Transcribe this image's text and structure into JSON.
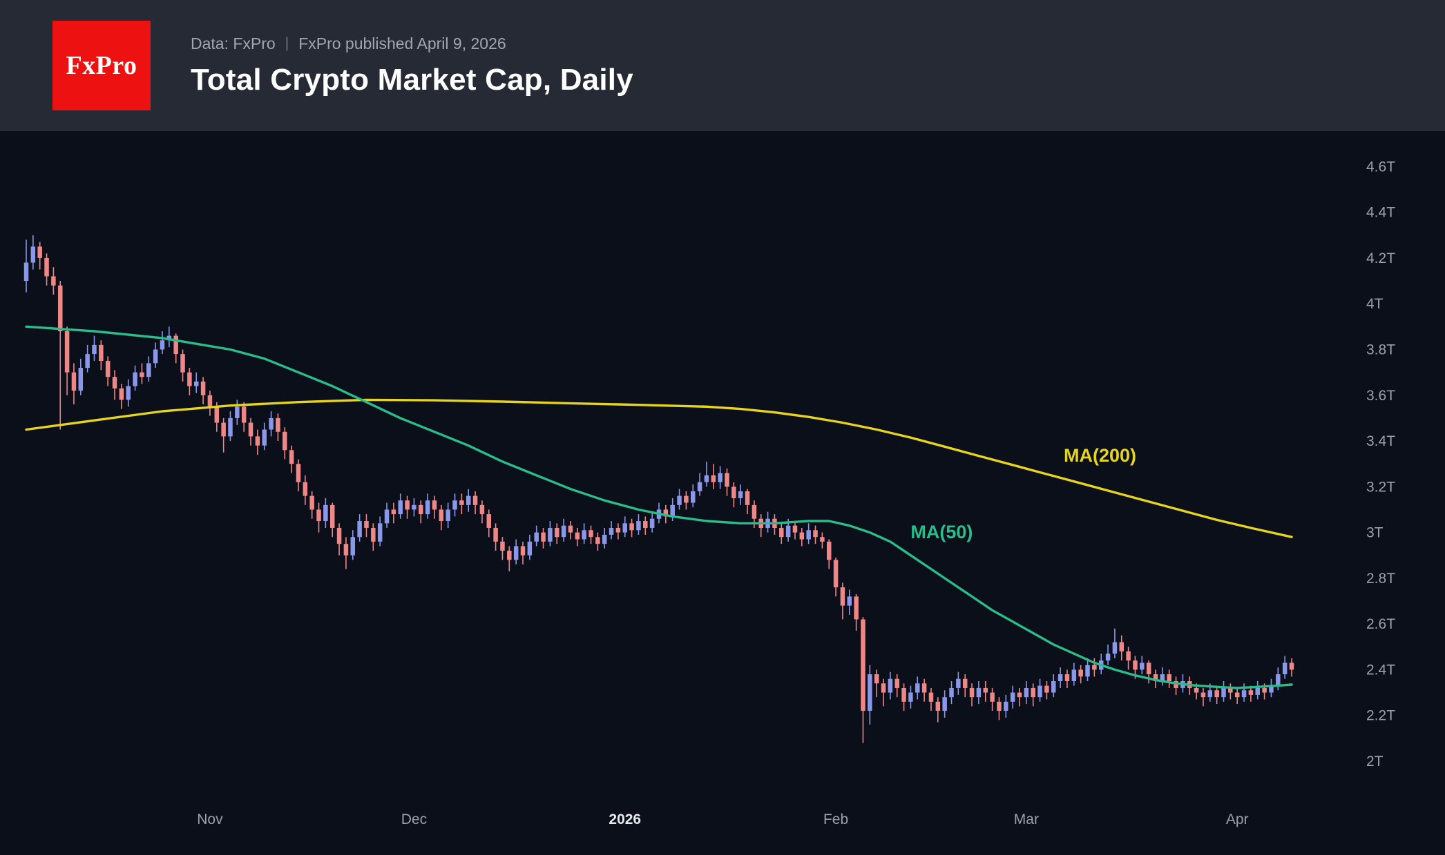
{
  "header": {
    "logo_text": "FxPro",
    "source_line": "Data: FxPro",
    "separator": "|",
    "published_line": "FxPro published April 9, 2026",
    "title": "Total Crypto Market Cap, Daily"
  },
  "colors": {
    "header_bg": "#262a35",
    "chart_bg": "#0b0f1a",
    "logo_bg": "#ee1111",
    "up_candle": "#8a97ea",
    "down_candle": "#f08787",
    "ma50": "#2abd8a",
    "ma200": "#e6d41f",
    "axis_text": "#9aa0ac",
    "bold_tick_text": "#e8eaed"
  },
  "chart_data": {
    "type": "candlestick",
    "title": "Total Crypto Market Cap, Daily",
    "timeframe": "Daily",
    "start_date": "2025-10-05",
    "end_date": "2026-04-09",
    "unit": "trillion USD",
    "ylim": [
      1.6,
      4.76
    ],
    "y_ticks": [
      {
        "label": "4.6T",
        "value": 4.6
      },
      {
        "label": "4.4T",
        "value": 4.4
      },
      {
        "label": "4.2T",
        "value": 4.2
      },
      {
        "label": "4T",
        "value": 4.0
      },
      {
        "label": "3.8T",
        "value": 3.8
      },
      {
        "label": "3.6T",
        "value": 3.6
      },
      {
        "label": "3.4T",
        "value": 3.4
      },
      {
        "label": "3.2T",
        "value": 3.2
      },
      {
        "label": "3T",
        "value": 3.0
      },
      {
        "label": "2.8T",
        "value": 2.8
      },
      {
        "label": "2.6T",
        "value": 2.6
      },
      {
        "label": "2.4T",
        "value": 2.4
      },
      {
        "label": "2.2T",
        "value": 2.2
      },
      {
        "label": "2T",
        "value": 2.0
      }
    ],
    "x_ticks": [
      {
        "label": "Nov",
        "index": 27,
        "bold": false
      },
      {
        "label": "Dec",
        "index": 57,
        "bold": false
      },
      {
        "label": "2026",
        "index": 88,
        "bold": true
      },
      {
        "label": "Feb",
        "index": 119,
        "bold": false
      },
      {
        "label": "Mar",
        "index": 147,
        "bold": false
      },
      {
        "label": "Apr",
        "index": 178,
        "bold": false
      }
    ],
    "candles": [
      [
        4.1,
        4.28,
        4.05,
        4.18
      ],
      [
        4.18,
        4.3,
        4.15,
        4.25
      ],
      [
        4.25,
        4.27,
        4.15,
        4.2
      ],
      [
        4.2,
        4.22,
        4.08,
        4.12
      ],
      [
        4.12,
        4.16,
        4.04,
        4.08
      ],
      [
        4.08,
        4.1,
        3.45,
        3.88
      ],
      [
        3.88,
        3.9,
        3.6,
        3.7
      ],
      [
        3.7,
        3.74,
        3.56,
        3.62
      ],
      [
        3.62,
        3.76,
        3.6,
        3.72
      ],
      [
        3.72,
        3.82,
        3.7,
        3.78
      ],
      [
        3.78,
        3.86,
        3.75,
        3.82
      ],
      [
        3.82,
        3.84,
        3.71,
        3.75
      ],
      [
        3.75,
        3.77,
        3.64,
        3.68
      ],
      [
        3.68,
        3.71,
        3.58,
        3.63
      ],
      [
        3.63,
        3.65,
        3.54,
        3.58
      ],
      [
        3.58,
        3.67,
        3.55,
        3.64
      ],
      [
        3.64,
        3.73,
        3.62,
        3.7
      ],
      [
        3.7,
        3.74,
        3.65,
        3.68
      ],
      [
        3.68,
        3.77,
        3.66,
        3.74
      ],
      [
        3.74,
        3.83,
        3.72,
        3.8
      ],
      [
        3.8,
        3.88,
        3.78,
        3.84
      ],
      [
        3.84,
        3.9,
        3.81,
        3.86
      ],
      [
        3.86,
        3.87,
        3.74,
        3.78
      ],
      [
        3.78,
        3.8,
        3.66,
        3.7
      ],
      [
        3.7,
        3.72,
        3.6,
        3.64
      ],
      [
        3.64,
        3.7,
        3.61,
        3.66
      ],
      [
        3.66,
        3.68,
        3.56,
        3.6
      ],
      [
        3.6,
        3.62,
        3.51,
        3.55
      ],
      [
        3.55,
        3.57,
        3.44,
        3.48
      ],
      [
        3.48,
        3.5,
        3.35,
        3.42
      ],
      [
        3.42,
        3.53,
        3.4,
        3.5
      ],
      [
        3.5,
        3.58,
        3.47,
        3.55
      ],
      [
        3.55,
        3.57,
        3.44,
        3.48
      ],
      [
        3.48,
        3.5,
        3.38,
        3.42
      ],
      [
        3.42,
        3.45,
        3.34,
        3.38
      ],
      [
        3.38,
        3.48,
        3.36,
        3.45
      ],
      [
        3.45,
        3.53,
        3.42,
        3.5
      ],
      [
        3.5,
        3.52,
        3.4,
        3.44
      ],
      [
        3.44,
        3.46,
        3.32,
        3.36
      ],
      [
        3.36,
        3.38,
        3.26,
        3.3
      ],
      [
        3.3,
        3.32,
        3.18,
        3.22
      ],
      [
        3.22,
        3.25,
        3.12,
        3.16
      ],
      [
        3.16,
        3.18,
        3.06,
        3.1
      ],
      [
        3.1,
        3.13,
        3.0,
        3.05
      ],
      [
        3.05,
        3.15,
        3.02,
        3.12
      ],
      [
        3.12,
        3.13,
        2.98,
        3.02
      ],
      [
        3.02,
        3.04,
        2.9,
        2.95
      ],
      [
        2.95,
        2.98,
        2.84,
        2.9
      ],
      [
        2.9,
        3.01,
        2.88,
        2.98
      ],
      [
        2.98,
        3.08,
        2.96,
        3.05
      ],
      [
        3.05,
        3.08,
        2.98,
        3.02
      ],
      [
        3.02,
        3.04,
        2.92,
        2.96
      ],
      [
        2.96,
        3.07,
        2.94,
        3.04
      ],
      [
        3.04,
        3.13,
        3.02,
        3.1
      ],
      [
        3.1,
        3.13,
        3.04,
        3.08
      ],
      [
        3.08,
        3.17,
        3.06,
        3.14
      ],
      [
        3.14,
        3.16,
        3.06,
        3.1
      ],
      [
        3.1,
        3.15,
        3.07,
        3.12
      ],
      [
        3.12,
        3.14,
        3.04,
        3.08
      ],
      [
        3.08,
        3.17,
        3.06,
        3.14
      ],
      [
        3.14,
        3.16,
        3.06,
        3.1
      ],
      [
        3.1,
        3.12,
        3.01,
        3.05
      ],
      [
        3.05,
        3.13,
        3.02,
        3.1
      ],
      [
        3.1,
        3.17,
        3.07,
        3.14
      ],
      [
        3.14,
        3.17,
        3.08,
        3.12
      ],
      [
        3.12,
        3.19,
        3.09,
        3.16
      ],
      [
        3.16,
        3.18,
        3.08,
        3.12
      ],
      [
        3.12,
        3.14,
        3.04,
        3.08
      ],
      [
        3.08,
        3.1,
        2.98,
        3.02
      ],
      [
        3.02,
        3.04,
        2.92,
        2.96
      ],
      [
        2.96,
        2.98,
        2.88,
        2.92
      ],
      [
        2.92,
        2.94,
        2.83,
        2.88
      ],
      [
        2.88,
        2.97,
        2.86,
        2.94
      ],
      [
        2.94,
        2.96,
        2.86,
        2.9
      ],
      [
        2.9,
        2.99,
        2.88,
        2.96
      ],
      [
        2.96,
        3.03,
        2.94,
        3.0
      ],
      [
        3.0,
        3.02,
        2.93,
        2.96
      ],
      [
        2.96,
        3.05,
        2.94,
        3.02
      ],
      [
        3.02,
        3.04,
        2.95,
        2.98
      ],
      [
        2.98,
        3.06,
        2.96,
        3.03
      ],
      [
        3.03,
        3.05,
        2.97,
        3.0
      ],
      [
        3.0,
        3.02,
        2.94,
        2.97
      ],
      [
        2.97,
        3.04,
        2.95,
        3.01
      ],
      [
        3.01,
        3.03,
        2.95,
        2.98
      ],
      [
        2.98,
        3.0,
        2.92,
        2.95
      ],
      [
        2.95,
        3.02,
        2.93,
        2.99
      ],
      [
        2.99,
        3.05,
        2.97,
        3.02
      ],
      [
        3.02,
        3.04,
        2.97,
        3.0
      ],
      [
        3.0,
        3.07,
        2.98,
        3.04
      ],
      [
        3.04,
        3.06,
        2.98,
        3.01
      ],
      [
        3.01,
        3.08,
        2.99,
        3.05
      ],
      [
        3.05,
        3.07,
        2.99,
        3.02
      ],
      [
        3.02,
        3.09,
        3.0,
        3.06
      ],
      [
        3.06,
        3.13,
        3.04,
        3.1
      ],
      [
        3.1,
        3.12,
        3.04,
        3.07
      ],
      [
        3.07,
        3.15,
        3.05,
        3.12
      ],
      [
        3.12,
        3.19,
        3.1,
        3.16
      ],
      [
        3.16,
        3.18,
        3.1,
        3.13
      ],
      [
        3.13,
        3.21,
        3.11,
        3.18
      ],
      [
        3.18,
        3.26,
        3.16,
        3.22
      ],
      [
        3.22,
        3.31,
        3.2,
        3.25
      ],
      [
        3.25,
        3.3,
        3.19,
        3.22
      ],
      [
        3.22,
        3.29,
        3.19,
        3.26
      ],
      [
        3.26,
        3.28,
        3.16,
        3.2
      ],
      [
        3.2,
        3.22,
        3.11,
        3.15
      ],
      [
        3.15,
        3.21,
        3.12,
        3.18
      ],
      [
        3.18,
        3.19,
        3.08,
        3.12
      ],
      [
        3.12,
        3.14,
        3.02,
        3.06
      ],
      [
        3.06,
        3.08,
        2.98,
        3.02
      ],
      [
        3.02,
        3.09,
        3.0,
        3.06
      ],
      [
        3.06,
        3.08,
        2.99,
        3.02
      ],
      [
        3.02,
        3.04,
        2.95,
        2.98
      ],
      [
        2.98,
        3.06,
        2.96,
        3.03
      ],
      [
        3.03,
        3.05,
        2.97,
        3.0
      ],
      [
        3.0,
        3.02,
        2.94,
        2.97
      ],
      [
        2.97,
        3.04,
        2.95,
        3.01
      ],
      [
        3.01,
        3.03,
        2.95,
        2.98
      ],
      [
        2.98,
        3.0,
        2.93,
        2.96
      ],
      [
        2.96,
        2.97,
        2.84,
        2.88
      ],
      [
        2.88,
        2.89,
        2.72,
        2.76
      ],
      [
        2.76,
        2.78,
        2.62,
        2.68
      ],
      [
        2.68,
        2.75,
        2.64,
        2.72
      ],
      [
        2.72,
        2.73,
        2.57,
        2.62
      ],
      [
        2.62,
        2.63,
        2.08,
        2.22
      ],
      [
        2.22,
        2.42,
        2.16,
        2.38
      ],
      [
        2.38,
        2.4,
        2.28,
        2.34
      ],
      [
        2.34,
        2.36,
        2.24,
        2.3
      ],
      [
        2.3,
        2.39,
        2.27,
        2.36
      ],
      [
        2.36,
        2.38,
        2.28,
        2.32
      ],
      [
        2.32,
        2.34,
        2.22,
        2.26
      ],
      [
        2.26,
        2.33,
        2.23,
        2.3
      ],
      [
        2.3,
        2.37,
        2.27,
        2.34
      ],
      [
        2.34,
        2.36,
        2.26,
        2.3
      ],
      [
        2.3,
        2.32,
        2.22,
        2.26
      ],
      [
        2.26,
        2.28,
        2.17,
        2.22
      ],
      [
        2.22,
        2.31,
        2.19,
        2.28
      ],
      [
        2.28,
        2.35,
        2.25,
        2.32
      ],
      [
        2.32,
        2.39,
        2.29,
        2.36
      ],
      [
        2.36,
        2.38,
        2.28,
        2.32
      ],
      [
        2.32,
        2.34,
        2.24,
        2.28
      ],
      [
        2.28,
        2.35,
        2.25,
        2.32
      ],
      [
        2.32,
        2.35,
        2.26,
        2.3
      ],
      [
        2.3,
        2.32,
        2.22,
        2.26
      ],
      [
        2.26,
        2.28,
        2.18,
        2.22
      ],
      [
        2.22,
        2.29,
        2.19,
        2.26
      ],
      [
        2.26,
        2.33,
        2.23,
        2.3
      ],
      [
        2.3,
        2.32,
        2.24,
        2.28
      ],
      [
        2.28,
        2.35,
        2.25,
        2.32
      ],
      [
        2.32,
        2.34,
        2.24,
        2.28
      ],
      [
        2.28,
        2.36,
        2.26,
        2.33
      ],
      [
        2.33,
        2.35,
        2.27,
        2.3
      ],
      [
        2.3,
        2.38,
        2.28,
        2.35
      ],
      [
        2.35,
        2.41,
        2.32,
        2.38
      ],
      [
        2.38,
        2.4,
        2.32,
        2.35
      ],
      [
        2.35,
        2.43,
        2.33,
        2.4
      ],
      [
        2.4,
        2.42,
        2.34,
        2.37
      ],
      [
        2.37,
        2.45,
        2.35,
        2.42
      ],
      [
        2.42,
        2.45,
        2.37,
        2.4
      ],
      [
        2.4,
        2.47,
        2.38,
        2.44
      ],
      [
        2.44,
        2.51,
        2.42,
        2.47
      ],
      [
        2.47,
        2.58,
        2.45,
        2.52
      ],
      [
        2.52,
        2.55,
        2.44,
        2.48
      ],
      [
        2.48,
        2.5,
        2.4,
        2.44
      ],
      [
        2.44,
        2.46,
        2.36,
        2.4
      ],
      [
        2.4,
        2.46,
        2.38,
        2.43
      ],
      [
        2.43,
        2.44,
        2.34,
        2.38
      ],
      [
        2.38,
        2.4,
        2.32,
        2.35
      ],
      [
        2.35,
        2.41,
        2.33,
        2.38
      ],
      [
        2.38,
        2.4,
        2.32,
        2.35
      ],
      [
        2.35,
        2.37,
        2.29,
        2.32
      ],
      [
        2.32,
        2.38,
        2.3,
        2.35
      ],
      [
        2.35,
        2.37,
        2.29,
        2.32
      ],
      [
        2.32,
        2.34,
        2.27,
        2.3
      ],
      [
        2.3,
        2.32,
        2.24,
        2.28
      ],
      [
        2.28,
        2.34,
        2.26,
        2.31
      ],
      [
        2.31,
        2.33,
        2.25,
        2.28
      ],
      [
        2.28,
        2.35,
        2.26,
        2.32
      ],
      [
        2.32,
        2.34,
        2.27,
        2.3
      ],
      [
        2.3,
        2.32,
        2.25,
        2.28
      ],
      [
        2.28,
        2.34,
        2.26,
        2.31
      ],
      [
        2.31,
        2.33,
        2.26,
        2.29
      ],
      [
        2.29,
        2.35,
        2.27,
        2.32
      ],
      [
        2.32,
        2.34,
        2.27,
        2.3
      ],
      [
        2.3,
        2.36,
        2.28,
        2.33
      ],
      [
        2.33,
        2.41,
        2.31,
        2.38
      ],
      [
        2.38,
        2.46,
        2.36,
        2.43
      ],
      [
        2.43,
        2.45,
        2.37,
        2.4
      ]
    ],
    "ma200": {
      "label": "MA(200)",
      "label_pos": [
        152.5,
        3.31
      ],
      "points": [
        [
          0,
          3.45
        ],
        [
          10,
          3.49
        ],
        [
          20,
          3.53
        ],
        [
          30,
          3.555
        ],
        [
          40,
          3.57
        ],
        [
          50,
          3.58
        ],
        [
          60,
          3.578
        ],
        [
          70,
          3.572
        ],
        [
          80,
          3.565
        ],
        [
          90,
          3.558
        ],
        [
          100,
          3.55
        ],
        [
          105,
          3.54
        ],
        [
          110,
          3.525
        ],
        [
          115,
          3.505
        ],
        [
          120,
          3.48
        ],
        [
          125,
          3.45
        ],
        [
          130,
          3.415
        ],
        [
          135,
          3.375
        ],
        [
          140,
          3.335
        ],
        [
          145,
          3.295
        ],
        [
          150,
          3.255
        ],
        [
          155,
          3.215
        ],
        [
          160,
          3.175
        ],
        [
          165,
          3.135
        ],
        [
          170,
          3.095
        ],
        [
          175,
          3.055
        ],
        [
          180,
          3.02
        ],
        [
          186,
          2.98
        ]
      ]
    },
    "ma50": {
      "label": "MA(50)",
      "label_pos": [
        130,
        2.975
      ],
      "points": [
        [
          0,
          3.9
        ],
        [
          10,
          3.88
        ],
        [
          20,
          3.85
        ],
        [
          30,
          3.8
        ],
        [
          35,
          3.76
        ],
        [
          40,
          3.7
        ],
        [
          45,
          3.64
        ],
        [
          50,
          3.57
        ],
        [
          55,
          3.5
        ],
        [
          60,
          3.44
        ],
        [
          65,
          3.38
        ],
        [
          70,
          3.31
        ],
        [
          75,
          3.25
        ],
        [
          80,
          3.19
        ],
        [
          85,
          3.14
        ],
        [
          90,
          3.1
        ],
        [
          95,
          3.07
        ],
        [
          100,
          3.05
        ],
        [
          105,
          3.04
        ],
        [
          110,
          3.04
        ],
        [
          115,
          3.05
        ],
        [
          118,
          3.05
        ],
        [
          121,
          3.03
        ],
        [
          124,
          3.0
        ],
        [
          127,
          2.96
        ],
        [
          130,
          2.9
        ],
        [
          133,
          2.84
        ],
        [
          136,
          2.78
        ],
        [
          139,
          2.72
        ],
        [
          142,
          2.66
        ],
        [
          145,
          2.61
        ],
        [
          148,
          2.56
        ],
        [
          151,
          2.51
        ],
        [
          154,
          2.47
        ],
        [
          157,
          2.43
        ],
        [
          160,
          2.4
        ],
        [
          163,
          2.375
        ],
        [
          166,
          2.355
        ],
        [
          169,
          2.34
        ],
        [
          172,
          2.33
        ],
        [
          175,
          2.325
        ],
        [
          178,
          2.32
        ],
        [
          181,
          2.325
        ],
        [
          184,
          2.33
        ],
        [
          186,
          2.335
        ]
      ]
    }
  }
}
